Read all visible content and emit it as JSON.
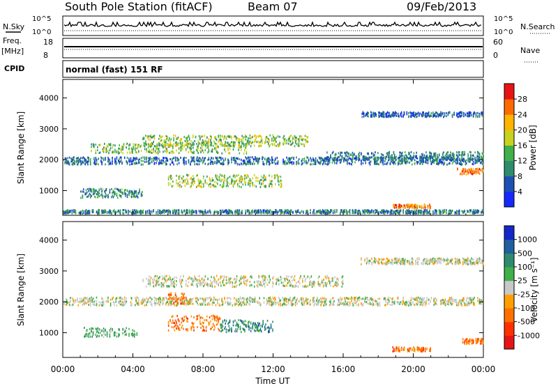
{
  "header": {
    "station": "South Pole Station (fitACF)",
    "beam": "Beam 07",
    "date": "09/Feb/2013",
    "nsky_label": "N.Sky",
    "nsearch_label": "N.Search",
    "freq_label": "Freq.",
    "freq_unit": "[MHz]",
    "nave_label": "Nave",
    "cpid_label": "CPID",
    "cpid_value": "normal (fast) 151 RF",
    "nsky_ticks": [
      "10^5",
      "10^0"
    ],
    "nsearch_ticks": [
      "10^5",
      "10^0"
    ],
    "freq_ticks": [
      "18",
      "8"
    ],
    "nave_ticks": [
      "60",
      "0"
    ]
  },
  "chart_data": [
    {
      "type": "heatmap",
      "name": "power",
      "xlabel": "",
      "ylabel": "Slant Range [km]",
      "x_ticks": [
        "00:00",
        "04:00",
        "08:00",
        "12:00",
        "16:00",
        "20:00",
        "00:00"
      ],
      "xlim_hours": [
        0,
        24
      ],
      "ylim": [
        200,
        4600
      ],
      "y_ticks": [
        1000,
        2000,
        3000,
        4000
      ],
      "colorbar": {
        "label": "Power [dB]",
        "ticks": [
          "4",
          "8",
          "12",
          "16",
          "20",
          "24",
          "28"
        ],
        "colors": [
          "#1428ff",
          "#1e4fb4",
          "#2f8a6e",
          "#3fb04a",
          "#c8d21e",
          "#ffb400",
          "#ff6a00",
          "#e61414"
        ]
      },
      "bands": [
        {
          "t0": 0.0,
          "t1": 24.0,
          "r": 1950,
          "w": 120,
          "level": 0.25
        },
        {
          "t0": 1.5,
          "t1": 10.5,
          "r": 2350,
          "w": 160,
          "level": 0.5
        },
        {
          "t0": 4.5,
          "t1": 14.0,
          "r": 2600,
          "w": 180,
          "level": 0.55
        },
        {
          "t0": 6.0,
          "t1": 12.5,
          "r": 1300,
          "w": 200,
          "level": 0.55
        },
        {
          "t0": 1.0,
          "t1": 4.5,
          "r": 900,
          "w": 150,
          "level": 0.35
        },
        {
          "t0": 15.0,
          "t1": 24.0,
          "r": 2100,
          "w": 140,
          "level": 0.3
        },
        {
          "t0": 18.8,
          "t1": 21.0,
          "r": 480,
          "w": 60,
          "level": 0.85
        },
        {
          "t0": 22.5,
          "t1": 24.0,
          "r": 1600,
          "w": 100,
          "level": 0.9
        },
        {
          "t0": 17.0,
          "t1": 24.0,
          "r": 3450,
          "w": 80,
          "level": 0.2
        },
        {
          "t0": 0.0,
          "t1": 24.0,
          "r": 300,
          "w": 60,
          "level": 0.3
        }
      ]
    },
    {
      "type": "heatmap",
      "name": "velocity",
      "xlabel": "Time UT",
      "ylabel": "Slant Range [km]",
      "x_ticks": [
        "00:00",
        "04:00",
        "08:00",
        "12:00",
        "16:00",
        "20:00",
        "00:00"
      ],
      "xlim_hours": [
        0,
        24
      ],
      "ylim": [
        200,
        4600
      ],
      "y_ticks": [
        1000,
        2000,
        3000,
        4000
      ],
      "colorbar": {
        "label": "Velocity [m s⁻¹]",
        "ticks": [
          "1000",
          "500",
          "100",
          "25",
          "-25",
          "-100",
          "-500",
          "-1000"
        ],
        "colors": [
          "#1428c8",
          "#2060a0",
          "#2f8a6e",
          "#3fb04a",
          "#c8c8c8",
          "#ffa000",
          "#ff7000",
          "#ff3000",
          "#e61414"
        ]
      },
      "bands": [
        {
          "t0": 0.0,
          "t1": 24.0,
          "r": 2000,
          "w": 130,
          "level": 4
        },
        {
          "t0": 4.5,
          "t1": 16.0,
          "r": 2650,
          "w": 180,
          "level": 4
        },
        {
          "t0": 6.0,
          "t1": 9.0,
          "r": 1300,
          "w": 250,
          "level": 6
        },
        {
          "t0": 9.0,
          "t1": 12.0,
          "r": 1200,
          "w": 200,
          "level": 2
        },
        {
          "t0": 1.2,
          "t1": 4.2,
          "r": 1000,
          "w": 150,
          "level": 3
        },
        {
          "t0": 6.0,
          "t1": 7.0,
          "r": 2100,
          "w": 180,
          "level": 6
        },
        {
          "t0": 18.8,
          "t1": 21.0,
          "r": 450,
          "w": 70,
          "level": 6
        },
        {
          "t0": 22.8,
          "t1": 24.0,
          "r": 700,
          "w": 90,
          "level": 6
        },
        {
          "t0": 17.0,
          "t1": 24.0,
          "r": 3300,
          "w": 100,
          "level": 4
        }
      ]
    }
  ]
}
